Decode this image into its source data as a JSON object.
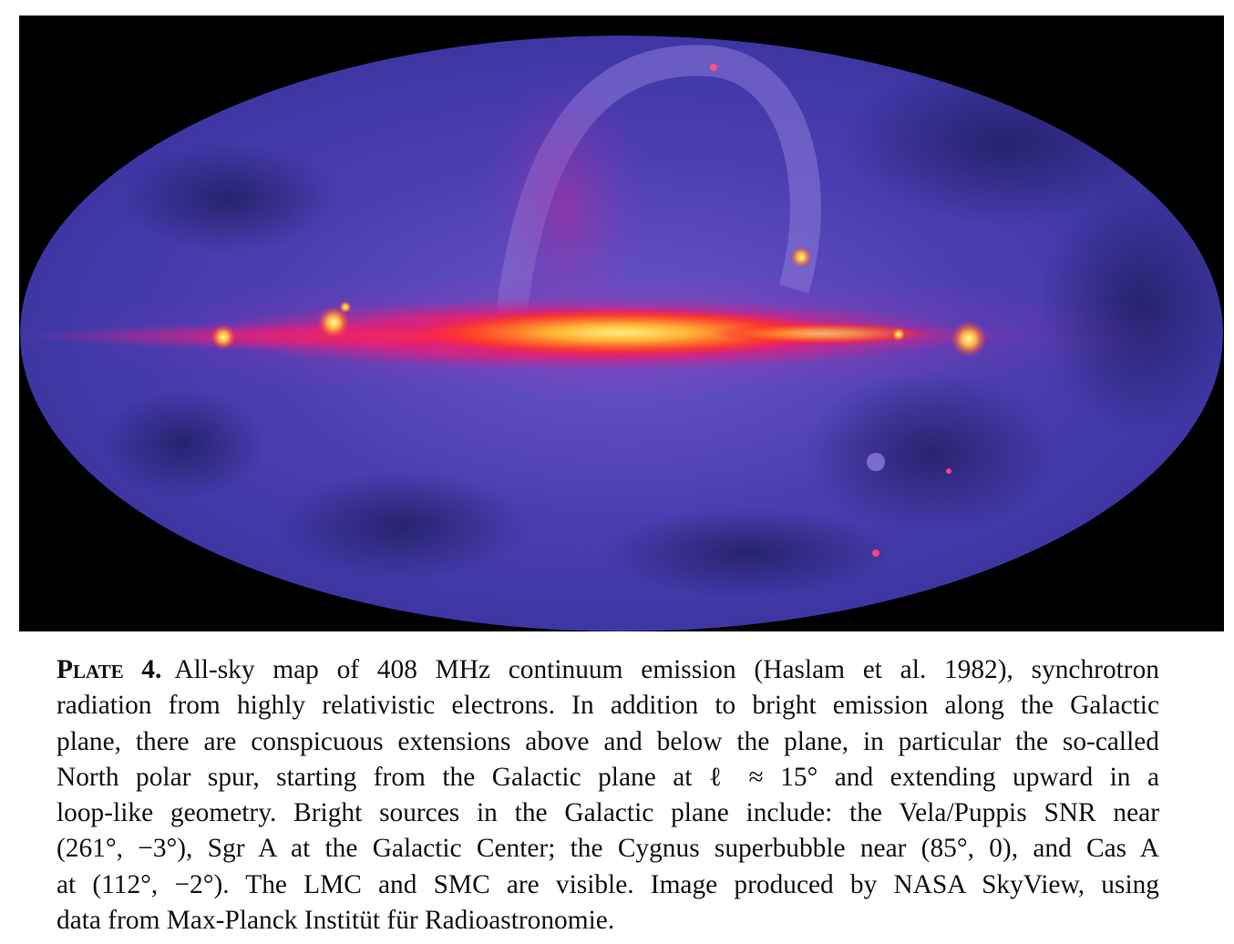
{
  "figure": {
    "label": "Plate 4.",
    "caption_lines": [
      "All-sky map of 408 MHz continuum emission (Haslam et al. 1982), synchrotron",
      "radiation from highly relativistic electrons.  In addition to bright emission along the Galactic",
      "plane, there are conspicuous extensions above and below the plane, in particular the so-called",
      "North polar spur, starting from the Galactic plane at ℓ ≈ 15° and extending upward in a",
      "loop-like geometry.  Bright sources in the Galactic plane include:  the Vela/Puppis SNR near",
      "(261°, −3°), Sgr A at the Galactic Center; the Cygnus superbubble near (85°, 0), and Cas A",
      "at (112°, −2°).  The LMC and SMC are visible.  Image produced by NASA SkyView, using",
      "data from Max-Planck Institüt für Radioastronomie."
    ]
  },
  "colors": {
    "background": "#000000",
    "sky_base": "#4a3aa8",
    "sky_dark": "#2a2470",
    "plane_outer": "#d0208a",
    "plane_mid": "#ff3a30",
    "plane_core": "#ffd040"
  }
}
